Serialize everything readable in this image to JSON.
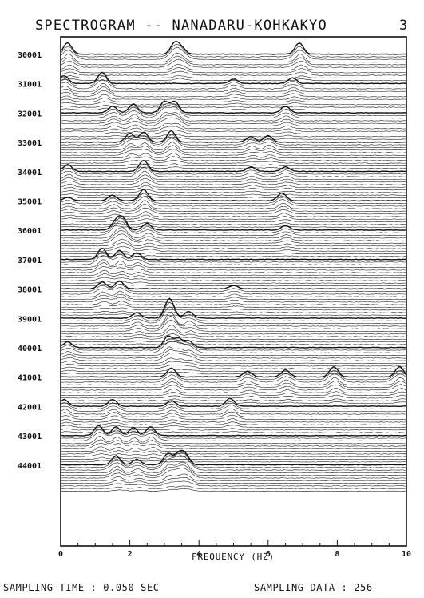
{
  "header": {
    "title": "SPECTROGRAM -- NANADARU-KOHKAKYO",
    "page_number": "3"
  },
  "footer": {
    "sampling_time": "SAMPLING TIME : 0.050 SEC",
    "sampling_data": "SAMPLING DATA : 256"
  },
  "chart_data": {
    "type": "line",
    "title": "SPECTROGRAM -- NANADARU-KOHKAKYO",
    "xlabel": "FREQUENCY (HZ)",
    "ylabel": "",
    "xlim": [
      0,
      10
    ],
    "x_ticks": [
      "0",
      "2",
      "4",
      "6",
      "8",
      "10"
    ],
    "y_ticks": [
      "30001",
      "31001",
      "32001",
      "33001",
      "34001",
      "35001",
      "36001",
      "37001",
      "38001",
      "39001",
      "40001",
      "41001",
      "42001",
      "43001",
      "44001"
    ],
    "grid": false,
    "series": [
      {
        "offset": "30001",
        "peaks": [
          [
            0.2,
            1.0
          ],
          [
            3.3,
            1.0
          ],
          [
            3.5,
            0.5
          ],
          [
            6.9,
            1.0
          ]
        ]
      },
      {
        "offset": "31001",
        "peaks": [
          [
            0.1,
            0.7
          ],
          [
            1.2,
            1.0
          ],
          [
            5.0,
            0.4
          ],
          [
            6.7,
            0.5
          ]
        ]
      },
      {
        "offset": "32001",
        "peaks": [
          [
            1.5,
            0.6
          ],
          [
            2.1,
            0.8
          ],
          [
            3.0,
            1.0
          ],
          [
            3.3,
            1.0
          ],
          [
            6.5,
            0.6
          ]
        ]
      },
      {
        "offset": "33001",
        "peaks": [
          [
            2.0,
            0.8
          ],
          [
            2.4,
            0.9
          ],
          [
            3.2,
            1.0
          ],
          [
            5.5,
            0.5
          ],
          [
            6.0,
            0.6
          ]
        ]
      },
      {
        "offset": "34001",
        "peaks": [
          [
            0.2,
            0.6
          ],
          [
            2.4,
            1.0
          ],
          [
            5.5,
            0.4
          ],
          [
            6.5,
            0.4
          ]
        ]
      },
      {
        "offset": "35001",
        "peaks": [
          [
            0.2,
            0.3
          ],
          [
            1.5,
            0.5
          ],
          [
            2.4,
            1.0
          ],
          [
            6.4,
            0.7
          ]
        ]
      },
      {
        "offset": "36001",
        "peaks": [
          [
            1.6,
            0.8
          ],
          [
            1.8,
            1.0
          ],
          [
            2.5,
            0.6
          ],
          [
            6.5,
            0.4
          ]
        ]
      },
      {
        "offset": "37001",
        "peaks": [
          [
            1.2,
            1.0
          ],
          [
            1.7,
            0.8
          ],
          [
            2.2,
            0.6
          ]
        ]
      },
      {
        "offset": "38001",
        "peaks": [
          [
            1.2,
            0.6
          ],
          [
            1.7,
            0.7
          ],
          [
            5.0,
            0.3
          ]
        ]
      },
      {
        "offset": "39001",
        "peaks": [
          [
            3.1,
            1.0
          ],
          [
            3.2,
            0.9
          ],
          [
            2.2,
            0.5
          ],
          [
            3.7,
            0.6
          ]
        ]
      },
      {
        "offset": "40001",
        "peaks": [
          [
            0.2,
            0.5
          ],
          [
            3.1,
            1.0
          ],
          [
            3.4,
            0.8
          ],
          [
            3.7,
            0.6
          ]
        ]
      },
      {
        "offset": "41001",
        "peaks": [
          [
            3.2,
            0.8
          ],
          [
            5.4,
            0.5
          ],
          [
            6.5,
            0.6
          ],
          [
            7.9,
            0.9
          ],
          [
            9.8,
            0.9
          ]
        ]
      },
      {
        "offset": "42001",
        "peaks": [
          [
            0.1,
            0.6
          ],
          [
            1.5,
            0.6
          ],
          [
            3.2,
            0.5
          ],
          [
            4.9,
            0.7
          ]
        ]
      },
      {
        "offset": "43001",
        "peaks": [
          [
            1.1,
            0.9
          ],
          [
            1.6,
            0.8
          ],
          [
            2.1,
            0.7
          ],
          [
            2.6,
            0.8
          ]
        ]
      },
      {
        "offset": "44001",
        "peaks": [
          [
            1.6,
            0.8
          ],
          [
            2.2,
            0.5
          ],
          [
            3.1,
            1.0
          ],
          [
            3.4,
            0.9
          ],
          [
            3.6,
            0.9
          ]
        ]
      }
    ]
  }
}
